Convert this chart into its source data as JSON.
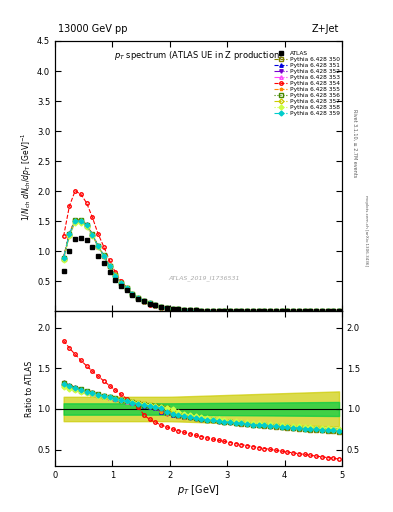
{
  "title_top": "13000 GeV pp",
  "title_right": "Z+Jet",
  "plot_title": "p_{T} spectrum (ATLAS UE in Z production)",
  "xlabel": "p_{T} [GeV]",
  "ylabel_main": "1/N_{ch} dN_{ch}/dp_{T} [GeV]",
  "ylabel_ratio": "Ratio to ATLAS",
  "watermark": "ATLAS_2019_I1736531",
  "right_label": "Rivet 3.1.10, ≥ 2.7M events",
  "right_label2": "mcplots.cern.ch [arXiv:1306.3436]",
  "xlim": [
    0,
    5
  ],
  "ylim_main": [
    0,
    4.5
  ],
  "ylim_ratio": [
    0.3,
    2.2
  ],
  "yticks_main": [
    0.5,
    1.0,
    1.5,
    2.0,
    2.5,
    3.0,
    3.5,
    4.0,
    4.5
  ],
  "yticks_ratio": [
    0.5,
    1.0,
    1.5,
    2.0
  ],
  "xticks": [
    0,
    1,
    2,
    3,
    4,
    5
  ],
  "colors": [
    "#808000",
    "#0000dd",
    "#7700cc",
    "#ff44ff",
    "#ff0000",
    "#ff8800",
    "#448800",
    "#cccc00",
    "#ccff44",
    "#00cccc"
  ],
  "markers": [
    "s",
    "^",
    "v",
    "^",
    "o",
    "*",
    "s",
    "D",
    "D",
    "D"
  ],
  "linestyles": [
    "--",
    "--",
    "-.",
    "-.",
    "--",
    "--",
    ":",
    "-.",
    ":",
    "-."
  ],
  "filleds": [
    false,
    true,
    true,
    false,
    false,
    true,
    false,
    false,
    true,
    true
  ],
  "band_inner_color": "#00cc44",
  "band_outer_color": "#cccc00",
  "atlas_x": [
    0.15,
    0.25,
    0.35,
    0.45,
    0.55,
    0.65,
    0.75,
    0.85,
    0.95,
    1.05,
    1.15,
    1.25,
    1.35,
    1.45,
    1.55,
    1.65,
    1.75,
    1.85,
    1.95,
    2.05,
    2.15,
    2.25,
    2.35,
    2.45,
    2.55,
    2.65,
    2.75,
    2.85,
    2.95,
    3.05,
    3.15,
    3.25,
    3.35,
    3.45,
    3.55,
    3.65,
    3.75,
    3.85,
    3.95,
    4.05,
    4.15,
    4.25,
    4.35,
    4.45,
    4.55,
    4.65,
    4.75,
    4.85,
    4.95
  ],
  "atlas_y": [
    0.68,
    1.0,
    1.2,
    1.22,
    1.18,
    1.07,
    0.92,
    0.8,
    0.66,
    0.53,
    0.43,
    0.35,
    0.27,
    0.21,
    0.165,
    0.13,
    0.1,
    0.078,
    0.06,
    0.047,
    0.037,
    0.029,
    0.022,
    0.017,
    0.013,
    0.01,
    0.008,
    0.0065,
    0.005,
    0.004,
    0.0032,
    0.0026,
    0.0021,
    0.0017,
    0.0014,
    0.0011,
    0.0009,
    0.00074,
    0.00061,
    0.0005,
    0.00041,
    0.00034,
    0.00028,
    0.00023,
    0.00019,
    0.00016,
    0.00013,
    0.00011,
    9e-05
  ],
  "ratio_low": [
    1.35,
    1.4,
    1.38,
    1.36,
    2.05,
    1.4,
    1.38,
    1.35,
    1.32,
    1.37
  ],
  "ratio_cross": [
    2.0,
    1.8,
    1.8,
    1.9,
    1.5,
    1.8,
    1.9,
    2.0,
    2.1,
    1.9
  ],
  "ratio_high": [
    0.72,
    0.75,
    0.73,
    0.74,
    0.38,
    0.72,
    0.73,
    0.74,
    0.75,
    0.73
  ]
}
